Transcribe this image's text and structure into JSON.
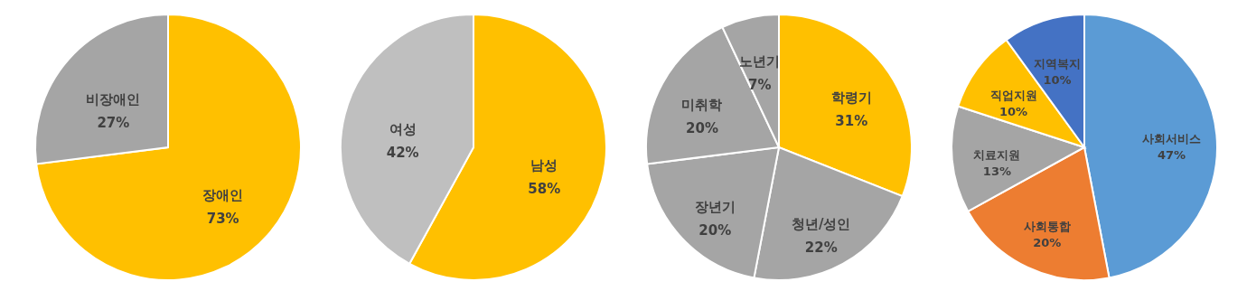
{
  "chart_data": [
    {
      "type": "pie",
      "categories": [
        "장애인",
        "비장애인"
      ],
      "values": [
        73,
        27
      ],
      "value_labels": [
        "73%",
        "27%"
      ],
      "colors": [
        "#ffc000",
        "#a5a5a5"
      ]
    },
    {
      "type": "pie",
      "categories": [
        "남성",
        "여성"
      ],
      "values": [
        58,
        42
      ],
      "value_labels": [
        "58%",
        "42%"
      ],
      "colors": [
        "#ffc000",
        "#bfbfbf"
      ]
    },
    {
      "type": "pie",
      "categories": [
        "학령기",
        "청년/성인",
        "장년기",
        "미취학",
        "노년기"
      ],
      "values": [
        31,
        22,
        20,
        20,
        7
      ],
      "value_labels": [
        "31%",
        "22%",
        "20%",
        "20%",
        "7%"
      ],
      "colors": [
        "#ffc000",
        "#a5a5a5",
        "#a5a5a5",
        "#a5a5a5",
        "#a5a5a5"
      ]
    },
    {
      "type": "pie",
      "categories": [
        "사회서비스",
        "사회통합",
        "치료지원",
        "직업지원",
        "지역복지"
      ],
      "values": [
        47,
        20,
        13,
        10,
        10
      ],
      "value_labels": [
        "47%",
        "20%",
        "13%",
        "10%",
        "10%"
      ],
      "colors": [
        "#5b9bd5",
        "#ed7d31",
        "#a5a5a5",
        "#ffc000",
        "#4472c4"
      ]
    }
  ]
}
